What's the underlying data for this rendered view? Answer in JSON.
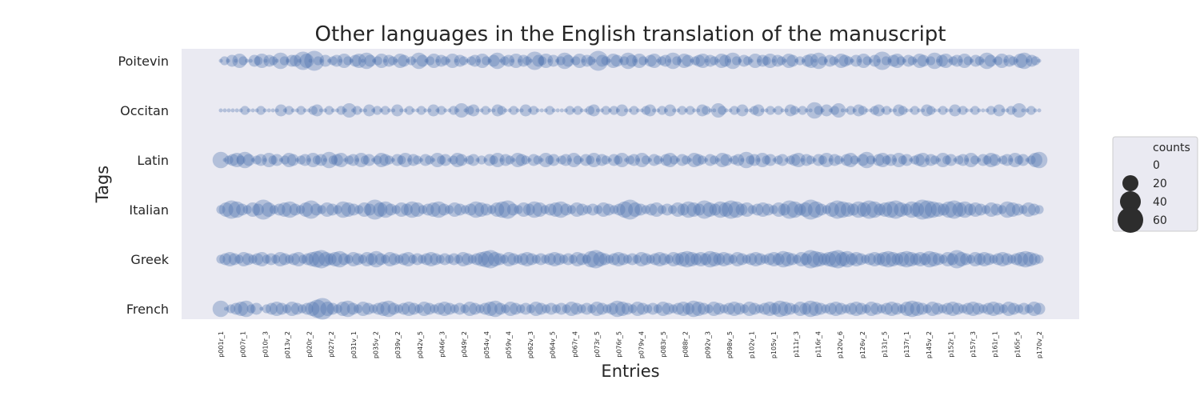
{
  "chart_data": {
    "type": "scatter",
    "title": "Other languages in the English translation of the manuscript",
    "xlabel": "Entries",
    "ylabel": "Tags",
    "categories_y": [
      "Poitevin",
      "Occitan",
      "Latin",
      "Italian",
      "Greek",
      "French"
    ],
    "x_tick_labels": [
      "p001r_1",
      "p007r_1",
      "p010r_3",
      "p013v_2",
      "p020r_2",
      "p027r_2",
      "p031v_1",
      "p035v_2",
      "p039v_2",
      "p042v_5",
      "p046r_3",
      "p049r_2",
      "p054v_4",
      "p059v_4",
      "p062v_3",
      "p064v_5",
      "p067r_4",
      "p073r_5",
      "p076r_5",
      "p079v_4",
      "p083r_5",
      "p088r_2",
      "p092v_3",
      "p098v_5",
      "p102v_1",
      "p105v_1",
      "p111r_3",
      "p116r_4",
      "p120v_6",
      "p126v_2",
      "p131r_5",
      "p137r_1",
      "p145v_2",
      "p152r_1",
      "p157r_3",
      "p161r_1",
      "p165r_5",
      "p170v_2"
    ],
    "size_legend": {
      "title": "counts",
      "values": [
        0,
        20,
        40,
        60
      ]
    },
    "grid": false,
    "legend_position": "right",
    "series_color": "#4c72b0",
    "background_color": "#eaeaf2",
    "series": [
      {
        "tag": "Poitevin",
        "counts": [
          0,
          1,
          0,
          2,
          0,
          3,
          1,
          0,
          0,
          2,
          1,
          3,
          0,
          2,
          1,
          0,
          4,
          1,
          0,
          2,
          2,
          0,
          5,
          3,
          0,
          6,
          1,
          0,
          2,
          0,
          1,
          2,
          0,
          3,
          1,
          0,
          2,
          3,
          0,
          4,
          2,
          0,
          1,
          3,
          0,
          2,
          1,
          0,
          3,
          2,
          0,
          1,
          0,
          4,
          2,
          0,
          1,
          3,
          0,
          2,
          1,
          0,
          3,
          0,
          2,
          1,
          0,
          1,
          2,
          0,
          3,
          1,
          0,
          2,
          4,
          0,
          1,
          2,
          0,
          3,
          0,
          2,
          1,
          0,
          5,
          2,
          1,
          3,
          0,
          2,
          0,
          1,
          4,
          2,
          0,
          1,
          3,
          0,
          2,
          1,
          0,
          6,
          2,
          1,
          0,
          3,
          2,
          0,
          1,
          4,
          2,
          0,
          3,
          1,
          0,
          2,
          3,
          0,
          1,
          2,
          0,
          4,
          1,
          0,
          3,
          2,
          0,
          1,
          2,
          3,
          0,
          2,
          1,
          0,
          3,
          2,
          0,
          4,
          1,
          0,
          2,
          1,
          0,
          3,
          0,
          2,
          1,
          3,
          0,
          2,
          1,
          0,
          3,
          2,
          0,
          1,
          0,
          2,
          3,
          0,
          4,
          1,
          0,
          2,
          1,
          0,
          3,
          2,
          1,
          0,
          2,
          0,
          3,
          1,
          0,
          2,
          0,
          5,
          1,
          0,
          2,
          3,
          1,
          0,
          2,
          1,
          0,
          3,
          2,
          0,
          1,
          4,
          0,
          2,
          3,
          0,
          1,
          2,
          0,
          3,
          1,
          0,
          2,
          1,
          0,
          4,
          2,
          0,
          1,
          3,
          0,
          2,
          1,
          0,
          3,
          4,
          0,
          2,
          1,
          0
        ]
      },
      {
        "tag": "Occitan",
        "counts": [
          0,
          0,
          0,
          0,
          0,
          0,
          1,
          0,
          0,
          0,
          1,
          0,
          0,
          0,
          0,
          2,
          0,
          1,
          0,
          0,
          1,
          0,
          0,
          1,
          2,
          0,
          0,
          1,
          0,
          0,
          1,
          0,
          3,
          0,
          1,
          0,
          0,
          2,
          0,
          1,
          0,
          1,
          0,
          0,
          2,
          0,
          0,
          1,
          0,
          0,
          1,
          0,
          0,
          2,
          0,
          1,
          0,
          0,
          1,
          0,
          3,
          0,
          1,
          2,
          0,
          0,
          1,
          0,
          0,
          2,
          1,
          0,
          0,
          1,
          0,
          0,
          2,
          0,
          1,
          0,
          0,
          0,
          1,
          0,
          0,
          0,
          0,
          1,
          0,
          1,
          0,
          0,
          1,
          2,
          0,
          0,
          1,
          0,
          1,
          0,
          2,
          0,
          0,
          1,
          0,
          0,
          1,
          2,
          0,
          0,
          1,
          0,
          2,
          0,
          0,
          1,
          0,
          1,
          0,
          0,
          2,
          1,
          0,
          0,
          3,
          1,
          0,
          0,
          1,
          0,
          2,
          0,
          0,
          1,
          2,
          0,
          0,
          1,
          0,
          1,
          0,
          0,
          2,
          1,
          0,
          1,
          0,
          0,
          4,
          1,
          0,
          2,
          0,
          1,
          3,
          0,
          0,
          1,
          0,
          2,
          1,
          0,
          0,
          1,
          2,
          0,
          1,
          0,
          0,
          2,
          1,
          0,
          0,
          1,
          0,
          0,
          2,
          1,
          0,
          0,
          1,
          0,
          0,
          2,
          0,
          1,
          0,
          0,
          1,
          0,
          0,
          0,
          1,
          0,
          2,
          0,
          0,
          1,
          0,
          3,
          0,
          0,
          1,
          0,
          0
        ]
      },
      {
        "tag": "Latin",
        "counts": [
          4,
          0,
          1,
          2,
          3,
          1,
          4,
          2,
          0,
          1,
          2,
          0,
          3,
          1,
          2,
          0,
          1,
          3,
          2,
          0,
          1,
          2,
          0,
          3,
          1,
          2,
          0,
          4,
          1,
          2,
          3,
          0,
          1,
          2,
          0,
          3,
          1,
          2,
          0,
          1,
          3,
          2,
          1,
          0,
          2,
          1,
          3,
          0,
          2,
          1,
          0,
          2,
          1,
          0,
          3,
          1,
          2,
          0,
          1,
          3,
          2,
          0,
          1,
          2,
          0,
          1,
          0,
          2,
          1,
          3,
          0,
          2,
          1,
          0,
          3,
          2,
          1,
          0,
          2,
          1,
          0,
          3,
          1,
          2,
          0,
          1,
          2,
          0,
          3,
          1,
          0,
          2,
          1,
          3,
          0,
          2,
          1,
          0,
          2,
          1,
          3,
          0,
          1,
          2,
          0,
          3,
          1,
          0,
          2,
          1,
          0,
          2,
          3,
          1,
          0,
          2,
          1,
          0,
          3,
          2,
          1,
          0,
          2,
          1,
          0,
          3,
          2,
          0,
          1,
          2,
          0,
          4,
          1,
          2,
          0,
          3,
          1,
          2,
          0,
          1,
          2,
          0,
          1,
          2,
          3,
          0,
          2,
          1,
          0,
          2,
          1,
          3,
          0,
          2,
          1,
          0,
          2,
          3,
          1,
          0,
          2,
          4,
          1,
          0,
          2,
          3,
          1,
          2,
          0,
          3,
          1,
          2,
          0,
          1,
          2,
          3,
          0,
          2,
          1,
          0,
          3,
          1,
          2,
          0,
          1,
          2,
          0,
          3,
          1,
          0,
          2,
          1,
          3,
          2,
          0,
          1,
          2,
          0,
          3,
          1,
          2,
          0,
          1,
          3,
          4
        ]
      },
      {
        "tag": "Italian",
        "counts": [
          1,
          3,
          5,
          4,
          2,
          1,
          3,
          2,
          6,
          3,
          1,
          2,
          3,
          4,
          2,
          1,
          3,
          5,
          2,
          1,
          3,
          2,
          1,
          4,
          3,
          2,
          1,
          3,
          2,
          6,
          3,
          4,
          2,
          1,
          3,
          2,
          4,
          3,
          1,
          2,
          3,
          4,
          2,
          1,
          3,
          2,
          1,
          2,
          4,
          3,
          2,
          1,
          3,
          4,
          5,
          2,
          1,
          3,
          2,
          4,
          3,
          1,
          2,
          3,
          4,
          2,
          1,
          3,
          2,
          1,
          2,
          1,
          3,
          2,
          1,
          2,
          4,
          6,
          3,
          2,
          1,
          2,
          3,
          1,
          2,
          1,
          3,
          2,
          4,
          3,
          2,
          5,
          3,
          2,
          4,
          3,
          5,
          4,
          2,
          3,
          1,
          2,
          3,
          2,
          1,
          3,
          2,
          5,
          4,
          2,
          3,
          6,
          4,
          2,
          1,
          3,
          5,
          4,
          3,
          2,
          4,
          3,
          5,
          4,
          2,
          3,
          4,
          5,
          3,
          2,
          4,
          3,
          6,
          5,
          4,
          3,
          2,
          4,
          5,
          3,
          4,
          2,
          3,
          2,
          1,
          3,
          2,
          1,
          4,
          3,
          2,
          1,
          3,
          2,
          1
        ]
      },
      {
        "tag": "Greek",
        "counts": [
          1,
          2,
          3,
          2,
          1,
          3,
          2,
          1,
          2,
          3,
          1,
          2,
          1,
          3,
          2,
          1,
          2,
          3,
          1,
          2,
          3,
          4,
          5,
          3,
          2,
          3,
          4,
          2,
          1,
          3,
          2,
          1,
          3,
          2,
          4,
          2,
          1,
          3,
          2,
          1,
          2,
          3,
          1,
          2,
          1,
          2,
          3,
          2,
          1,
          2,
          1,
          2,
          1,
          3,
          2,
          1,
          2,
          3,
          4,
          5,
          3,
          2,
          1,
          3,
          2,
          1,
          2,
          3,
          2,
          1,
          2,
          1,
          2,
          3,
          2,
          1,
          2,
          1,
          3,
          2,
          1,
          4,
          5,
          3,
          2,
          1,
          2,
          3,
          2,
          1,
          2,
          1,
          3,
          2,
          1,
          2,
          3,
          2,
          1,
          3,
          2,
          3,
          4,
          3,
          2,
          3,
          2,
          4,
          3,
          2,
          3,
          2,
          1,
          3,
          2,
          1,
          2,
          3,
          2,
          1,
          2,
          3,
          2,
          4,
          3,
          2,
          1,
          3,
          2,
          5,
          4,
          3,
          2,
          3,
          4,
          5,
          3,
          4,
          2,
          3,
          2,
          1,
          2,
          3,
          2,
          3,
          4,
          3,
          2,
          3,
          4,
          3,
          2,
          3,
          2,
          4,
          3,
          2,
          1,
          3,
          2,
          5,
          3,
          2,
          1,
          3,
          2,
          3,
          2,
          1,
          2,
          3,
          2,
          1,
          2,
          3,
          4,
          3,
          2,
          1
        ]
      },
      {
        "tag": "French",
        "counts": [
          4,
          0,
          1,
          2,
          3,
          4,
          1,
          2,
          0,
          1,
          2,
          3,
          2,
          1,
          3,
          2,
          1,
          2,
          3,
          5,
          7,
          3,
          2,
          1,
          3,
          4,
          2,
          1,
          3,
          2,
          1,
          2,
          3,
          4,
          2,
          1,
          2,
          3,
          2,
          1,
          3,
          2,
          1,
          2,
          3,
          2,
          1,
          2,
          1,
          3,
          2,
          1,
          2,
          3,
          4,
          2,
          1,
          3,
          2,
          1,
          2,
          1,
          3,
          2,
          1,
          2,
          1,
          2,
          1,
          3,
          2,
          1,
          2,
          1,
          3,
          2,
          1,
          2,
          4,
          3,
          2,
          1,
          3,
          2,
          1,
          2,
          1,
          3,
          2,
          1,
          2,
          3,
          2,
          4,
          3,
          2,
          1,
          3,
          2,
          1,
          2,
          3,
          2,
          1,
          3,
          2,
          1,
          2,
          3,
          2,
          4,
          3,
          2,
          1,
          3,
          2,
          4,
          3,
          2,
          1,
          2,
          3,
          2,
          1,
          2,
          3,
          2,
          1,
          3,
          2,
          1,
          2,
          3,
          2,
          1,
          3,
          4,
          3,
          2,
          1,
          3,
          2,
          1,
          2,
          3,
          2,
          1,
          2,
          3,
          2,
          1,
          2,
          3,
          2,
          1,
          3,
          2,
          1,
          2,
          1,
          3,
          2
        ]
      }
    ]
  }
}
